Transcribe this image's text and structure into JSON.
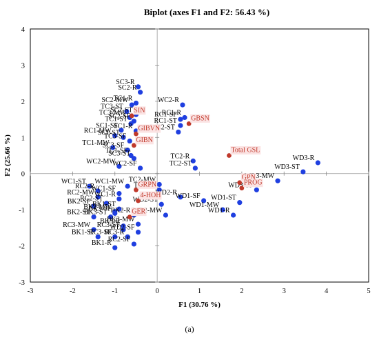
{
  "chart_data": {
    "type": "scatter",
    "title": "Biplot (axes F1 and F2: 56.43 %)",
    "xlabel": "F1 (30.76 %)",
    "ylabel": "F2 (25.66 %)",
    "xlim": [
      -3,
      5
    ],
    "ylim": [
      -3,
      4
    ],
    "x_ticks": [
      -3,
      -2,
      -1,
      0,
      1,
      2,
      3,
      4,
      5
    ],
    "y_ticks": [
      -3,
      -2,
      -1,
      0,
      1,
      2,
      3,
      4
    ],
    "grid": false,
    "legend": "none",
    "caption": "(a)",
    "colors": {
      "observations": "#1f3fe0",
      "variables": "#c0392b",
      "origin_line": "#999999"
    },
    "series": [
      {
        "kind": "observations",
        "points": [
          {
            "label": "SC3-R",
            "x": -0.45,
            "y": 2.4
          },
          {
            "label": "SC2-R",
            "x": -0.4,
            "y": 2.25
          },
          {
            "label": "TC1-R",
            "x": -0.5,
            "y": 1.95
          },
          {
            "label": "SC2-MW",
            "x": -0.6,
            "y": 1.9
          },
          {
            "label": "WC2-R",
            "x": 0.6,
            "y": 1.9
          },
          {
            "label": "TC3-ST",
            "x": -0.72,
            "y": 1.72
          },
          {
            "label": "SC2-ST",
            "x": -0.5,
            "y": 1.63
          },
          {
            "label": "RC1-R",
            "x": 0.65,
            "y": 1.55
          },
          {
            "label": "TC3-MW",
            "x": -0.65,
            "y": 1.55
          },
          {
            "label": "RC1-SF",
            "x": 0.55,
            "y": 1.5
          },
          {
            "label": "SC2-SF",
            "x": -0.55,
            "y": 1.45
          },
          {
            "label": "TC1-ST",
            "x": -0.62,
            "y": 1.38
          },
          {
            "label": "RC1-ST",
            "x": 0.55,
            "y": 1.33
          },
          {
            "label": "SC1-SF",
            "x": -0.85,
            "y": 1.2
          },
          {
            "label": "SC1-R",
            "x": -0.5,
            "y": 1.18
          },
          {
            "label": "WC2-ST",
            "x": 0.5,
            "y": 1.15
          },
          {
            "label": "RC1-MW",
            "x": -1.0,
            "y": 1.05
          },
          {
            "label": "SC1-ST",
            "x": -0.8,
            "y": 1.0
          },
          {
            "label": "TC3-SF",
            "x": -0.65,
            "y": 0.9
          },
          {
            "label": "TC1-MW",
            "x": -1.05,
            "y": 0.72
          },
          {
            "label": "SC3-SF",
            "x": -0.7,
            "y": 0.65
          },
          {
            "label": "TC1-SF",
            "x": -0.62,
            "y": 0.5
          },
          {
            "label": "SC3-ST",
            "x": -0.55,
            "y": 0.42
          },
          {
            "label": "WC2-MW",
            "x": -0.9,
            "y": 0.2
          },
          {
            "label": "WC2-SF",
            "x": -0.4,
            "y": 0.15
          },
          {
            "label": "TC2-R",
            "x": 0.85,
            "y": 0.35
          },
          {
            "label": "TC2-ST",
            "x": 0.9,
            "y": 0.15
          },
          {
            "label": "WD3-R",
            "x": 3.8,
            "y": 0.3
          },
          {
            "label": "WD3-ST",
            "x": 3.45,
            "y": 0.05
          },
          {
            "label": "WD3-MW",
            "x": 2.85,
            "y": -0.2
          },
          {
            "label": "WD3-SF",
            "x": 2.35,
            "y": -0.45
          },
          {
            "label": "WC1-ST",
            "x": -1.6,
            "y": -0.35
          },
          {
            "label": "WC1-MW",
            "x": -0.7,
            "y": -0.35
          },
          {
            "label": "RC2-R",
            "x": -1.4,
            "y": -0.48
          },
          {
            "label": "WC1-SF",
            "x": -0.9,
            "y": -0.55
          },
          {
            "label": "RC2-MW",
            "x": -1.4,
            "y": -0.65
          },
          {
            "label": "WC1-R",
            "x": -0.9,
            "y": -0.7
          },
          {
            "label": "TC2-MW",
            "x": 0.05,
            "y": -0.3
          },
          {
            "label": "TC2-SF",
            "x": 0.05,
            "y": -0.45
          },
          {
            "label": "WD2-R",
            "x": 0.55,
            "y": -0.65
          },
          {
            "label": "WD2-ST",
            "x": 0.1,
            "y": -0.85
          },
          {
            "label": "WD1-SF",
            "x": 1.1,
            "y": -0.75
          },
          {
            "label": "WD1-ST",
            "x": 1.95,
            "y": -0.8
          },
          {
            "label": "WD1-MW",
            "x": 1.55,
            "y": -1.0
          },
          {
            "label": "WD1-R",
            "x": 1.8,
            "y": -1.15
          },
          {
            "label": "WD2-MW",
            "x": 0.2,
            "y": -1.15
          },
          {
            "label": "RC2-ST",
            "x": -1.2,
            "y": -0.82
          },
          {
            "label": "BK2-SF",
            "x": -1.5,
            "y": -0.9
          },
          {
            "label": "BK1-ST",
            "x": -0.9,
            "y": -0.98
          },
          {
            "label": "BK2-MW",
            "x": -1.0,
            "y": -1.05
          },
          {
            "label": "BK2-ST",
            "x": -1.5,
            "y": -1.2
          },
          {
            "label": "BK3-ST",
            "x": -1.1,
            "y": -1.2
          },
          {
            "label": "BK2-R",
            "x": -0.55,
            "y": -1.15
          },
          {
            "label": "BK3-SF",
            "x": -1.0,
            "y": -1.1
          },
          {
            "label": "BK3-R",
            "x": -0.8,
            "y": -1.45
          },
          {
            "label": "BK3-MW",
            "x": -0.45,
            "y": -1.4
          },
          {
            "label": "RC3-MW",
            "x": -1.5,
            "y": -1.55
          },
          {
            "label": "RC3-ST",
            "x": -0.8,
            "y": -1.55
          },
          {
            "label": "BK1-SF",
            "x": -1.4,
            "y": -1.75
          },
          {
            "label": "RC3-SF",
            "x": -1.0,
            "y": -1.75
          },
          {
            "label": "RC3-R",
            "x": -0.7,
            "y": -1.75
          },
          {
            "label": "WD2-SF",
            "x": -0.45,
            "y": -1.62
          },
          {
            "label": "RC2-SF",
            "x": -0.55,
            "y": -1.95
          },
          {
            "label": "BK1-R",
            "x": -1.0,
            "y": -2.05
          }
        ]
      },
      {
        "kind": "variables",
        "points": [
          {
            "label": "SIN",
            "x": -0.6,
            "y": 1.6
          },
          {
            "label": "GIBVN",
            "x": -0.5,
            "y": 1.1
          },
          {
            "label": "GBSN",
            "x": 0.75,
            "y": 1.38
          },
          {
            "label": "GIBN",
            "x": -0.55,
            "y": 0.78
          },
          {
            "label": "Total GSL",
            "x": 1.7,
            "y": 0.5
          },
          {
            "label": "GRPN",
            "x": -0.5,
            "y": -0.45
          },
          {
            "label": "4-HOH",
            "x": -0.45,
            "y": -0.75
          },
          {
            "label": "GPN",
            "x": 1.95,
            "y": -0.25
          },
          {
            "label": "PROG",
            "x": 2.0,
            "y": -0.4
          },
          {
            "label": "GER",
            "x": -0.65,
            "y": -1.2
          }
        ]
      }
    ]
  }
}
